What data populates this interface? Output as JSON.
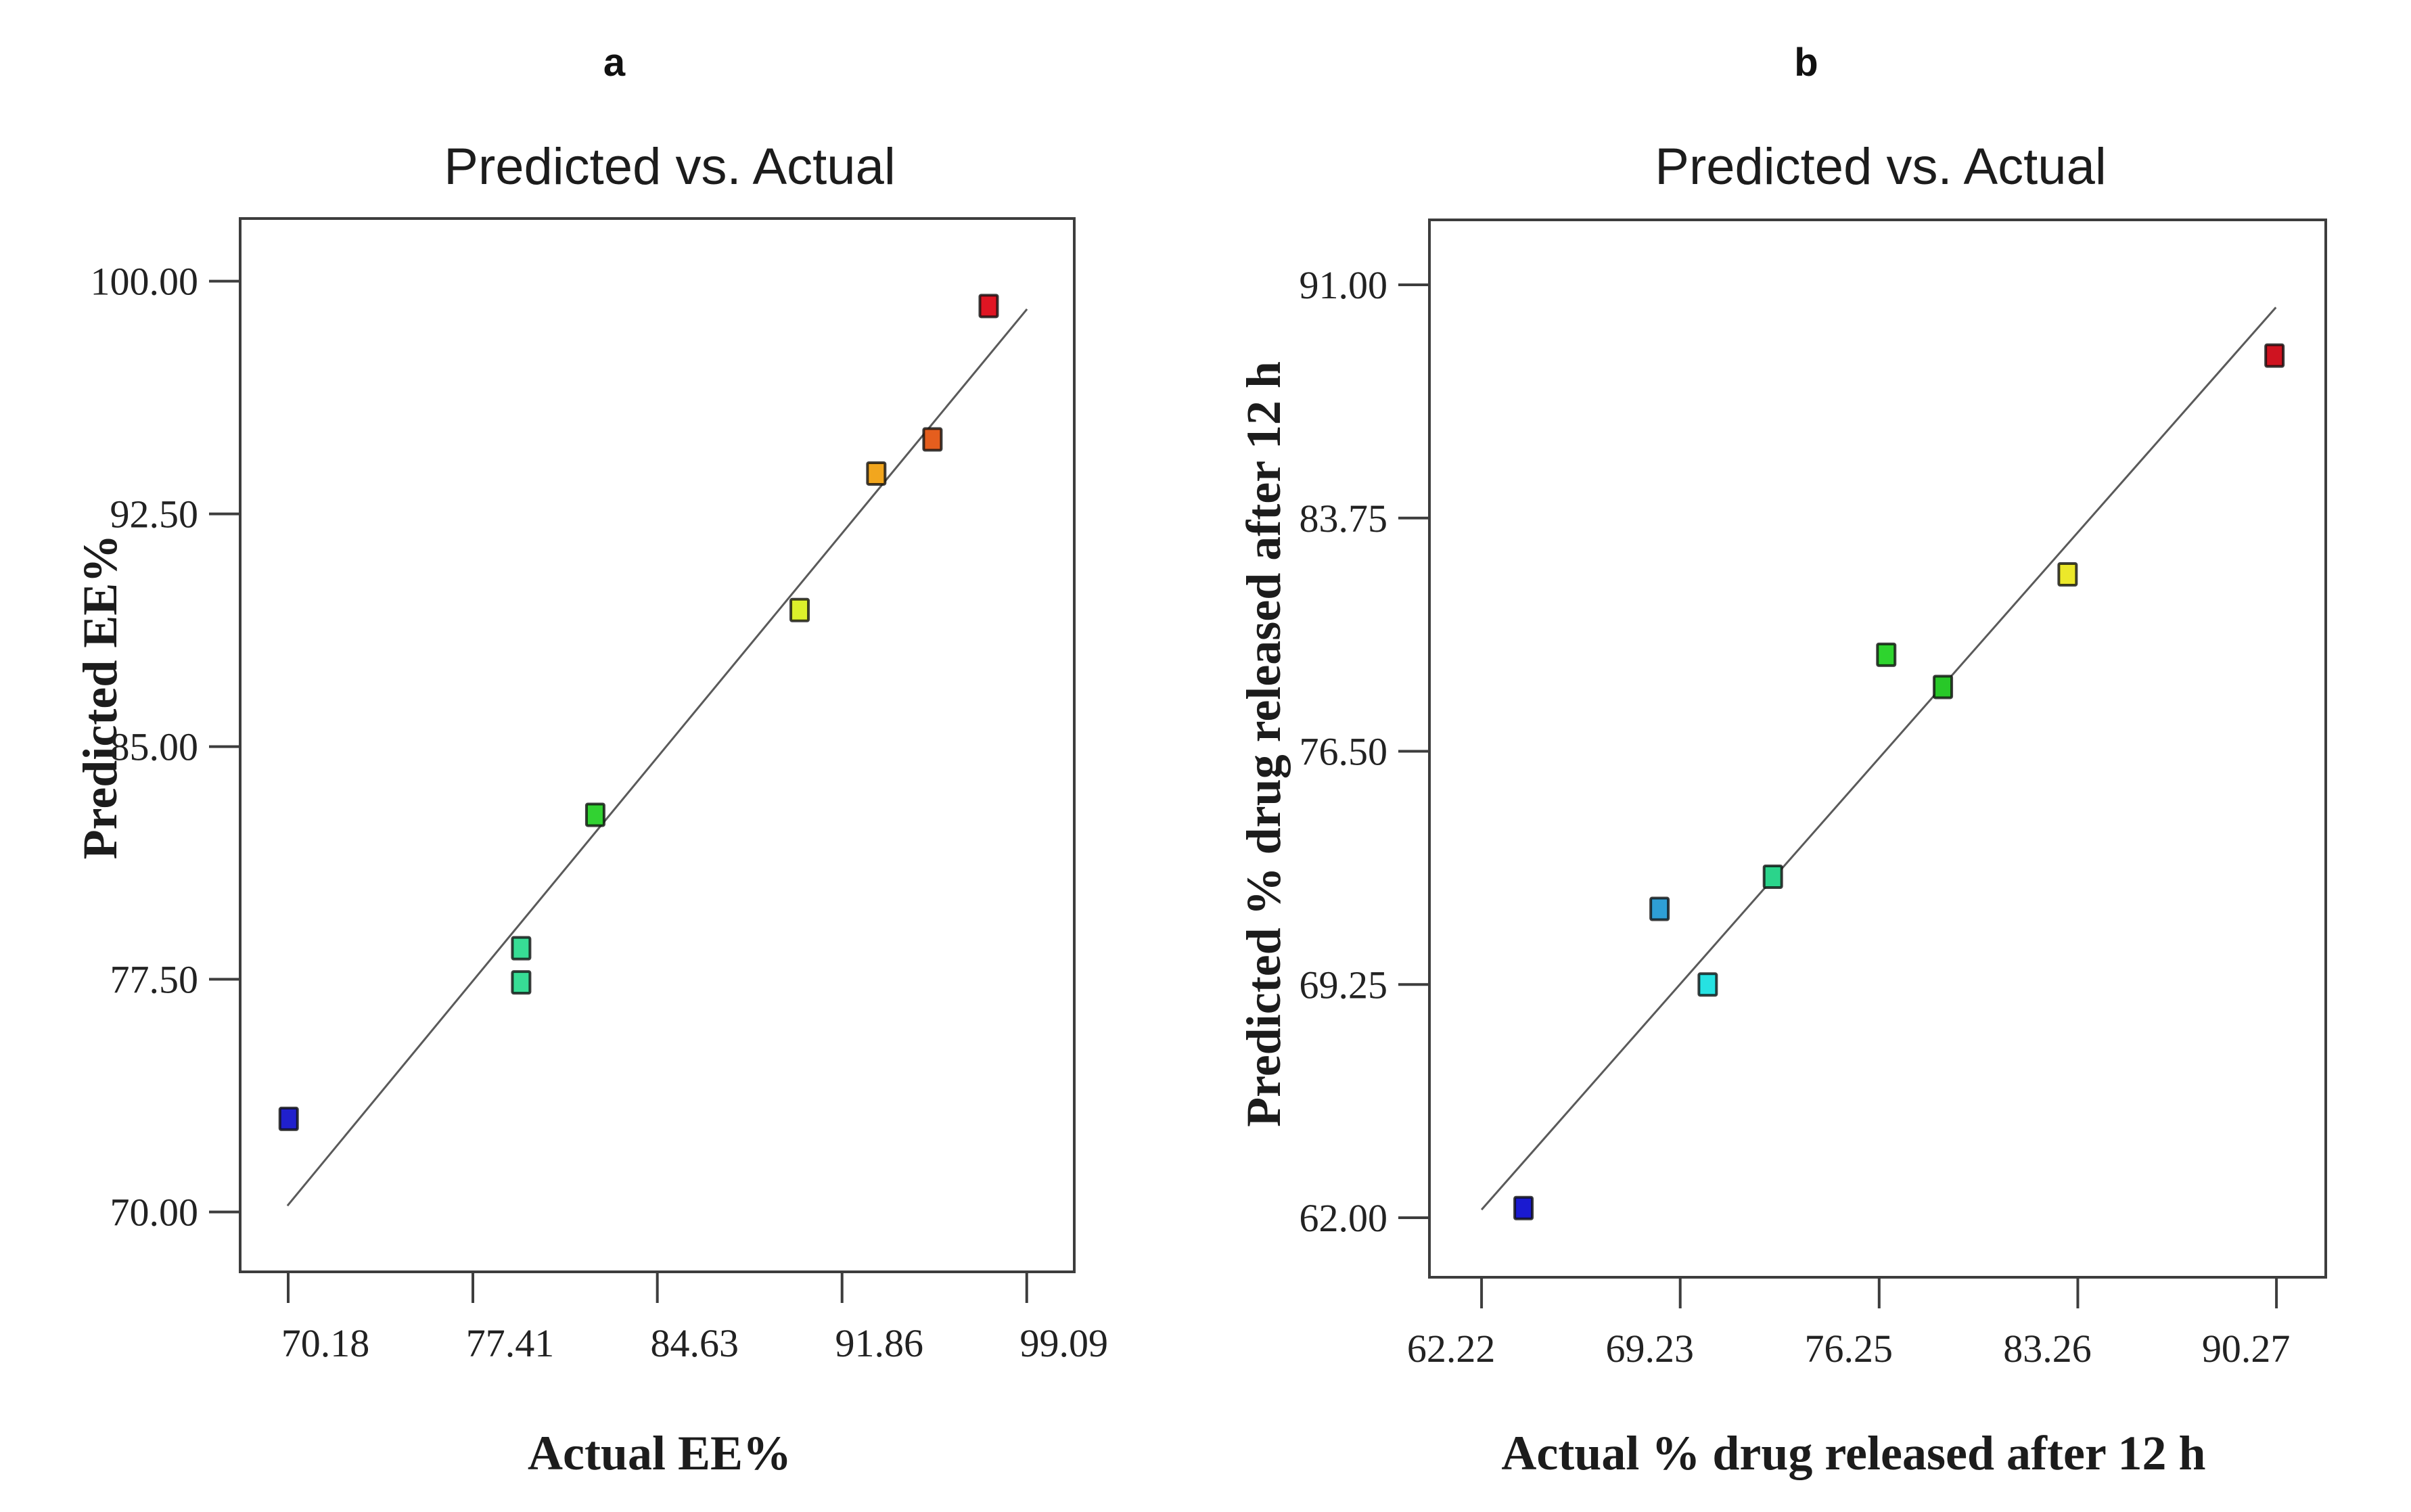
{
  "figure": {
    "background": "#ffffff"
  },
  "chart_data": [
    {
      "panel_label": "a",
      "type": "scatter",
      "title": "Predicted vs. Actual",
      "xlabel": "Actual EE%",
      "ylabel": "Predicted EE%",
      "xlim": [
        68.3,
        100.95
      ],
      "ylim": [
        68.07,
        102.02
      ],
      "grid": false,
      "legend": false,
      "x_ticks": [
        {
          "value": 70.18,
          "label": "70.18"
        },
        {
          "value": 77.41,
          "label": "77.41"
        },
        {
          "value": 84.63,
          "label": "84.63"
        },
        {
          "value": 91.86,
          "label": "91.86"
        },
        {
          "value": 99.09,
          "label": "99.09"
        }
      ],
      "y_ticks": [
        {
          "value": 100.0,
          "label": "100.00"
        },
        {
          "value": 92.5,
          "label": "92.50"
        },
        {
          "value": 85.0,
          "label": "85.00"
        },
        {
          "value": 77.5,
          "label": "77.50"
        },
        {
          "value": 70.0,
          "label": "70.00"
        }
      ],
      "identity_line": {
        "x1": 70.15,
        "y1": 70.2,
        "x2": 99.1,
        "y2": 99.1
      },
      "points": [
        {
          "x": 70.2,
          "y": 73.0,
          "color": "#2020cd"
        },
        {
          "x": 79.3,
          "y": 78.5,
          "color": "#37dd95"
        },
        {
          "x": 79.3,
          "y": 77.4,
          "color": "#37dd95"
        },
        {
          "x": 82.2,
          "y": 82.8,
          "color": "#32d232"
        },
        {
          "x": 90.2,
          "y": 89.4,
          "color": "#dcf02b"
        },
        {
          "x": 93.2,
          "y": 93.8,
          "color": "#f2a61e"
        },
        {
          "x": 95.4,
          "y": 94.9,
          "color": "#e55e1e"
        },
        {
          "x": 97.6,
          "y": 99.2,
          "color": "#e01523"
        }
      ]
    },
    {
      "panel_label": "b",
      "type": "scatter",
      "title": "Predicted vs. Actual",
      "xlabel": "Actual % drug released after 12 h",
      "ylabel": "Predicted % drug released after 12 h",
      "xlim": [
        60.38,
        92.01
      ],
      "ylim": [
        60.15,
        93.02
      ],
      "grid": false,
      "legend": false,
      "x_ticks": [
        {
          "value": 62.22,
          "label": "62.22"
        },
        {
          "value": 69.23,
          "label": "69.23"
        },
        {
          "value": 76.25,
          "label": "76.25"
        },
        {
          "value": 83.26,
          "label": "83.26"
        },
        {
          "value": 90.27,
          "label": "90.27"
        }
      ],
      "y_ticks": [
        {
          "value": 91.0,
          "label": "91.00"
        },
        {
          "value": 83.75,
          "label": "83.75"
        },
        {
          "value": 76.5,
          "label": "76.50"
        },
        {
          "value": 69.25,
          "label": "69.25"
        },
        {
          "value": 62.0,
          "label": "62.00"
        }
      ],
      "identity_line": {
        "x1": 62.22,
        "y1": 62.25,
        "x2": 90.25,
        "y2": 90.3
      },
      "points": [
        {
          "x": 63.7,
          "y": 62.3,
          "color": "#1a1ad0"
        },
        {
          "x": 68.5,
          "y": 71.6,
          "color": "#2e9fd6"
        },
        {
          "x": 70.2,
          "y": 69.25,
          "color": "#26e2e2"
        },
        {
          "x": 72.5,
          "y": 72.6,
          "color": "#2bd48b"
        },
        {
          "x": 76.5,
          "y": 79.5,
          "color": "#2ed42e"
        },
        {
          "x": 78.5,
          "y": 78.5,
          "color": "#28c828"
        },
        {
          "x": 82.9,
          "y": 82.0,
          "color": "#ece82a"
        },
        {
          "x": 90.2,
          "y": 88.8,
          "color": "#cf1320"
        }
      ]
    }
  ]
}
